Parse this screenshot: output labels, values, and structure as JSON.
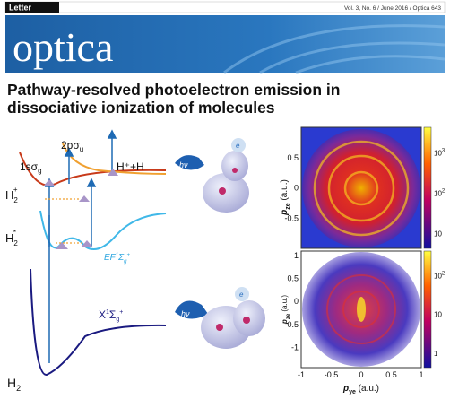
{
  "header": {
    "label": "Letter",
    "info": "Vol. 3, No. 6 / June 2016 / Optica 643"
  },
  "journal": "optica",
  "title": [
    "Pathway-resolved photoelectron emission in",
    "dissociative ionization of molecules"
  ],
  "figure": {
    "curves": {
      "upper": {
        "main": "2pσ",
        "sub": "u"
      },
      "lower": {
        "main": "1sσ",
        "sub": "g"
      },
      "ion": {
        "main": "H",
        "sub": "2",
        "sup": "+"
      },
      "excited": {
        "main": "H",
        "sub": "2",
        "sup": "*"
      },
      "limit": "H⁺+H",
      "ef": {
        "main": "EF",
        "sup1": "1",
        "mid": "Σ",
        "sub": "g",
        "sup2": "+"
      },
      "ground": {
        "main": "X",
        "sup1": "1",
        "mid": "Σ",
        "sub": "g",
        "sup2": "+"
      },
      "neutral": {
        "main": "H",
        "sub": "2"
      }
    },
    "photon": "hν",
    "electron": "e",
    "y_label": {
      "main": "p",
      "sub": "ze",
      "unit": " (a.u.)"
    },
    "x_label": {
      "main": "p",
      "sub": "ye",
      "unit": " (a.u.)"
    },
    "top_yticks": [
      "0.5",
      "0",
      "-0.5"
    ],
    "bottom_yticks": [
      "0.5",
      "0",
      "-0.5",
      "-1"
    ],
    "bottom_ytick_top": "1",
    "xticks": [
      "-1",
      "-0.5",
      "0",
      "0.5",
      "1"
    ],
    "top_cbar": [
      {
        "text": "10",
        "sup": "3"
      },
      {
        "text": "10",
        "sup": "2"
      },
      {
        "text": "10"
      }
    ],
    "bottom_cbar": [
      {
        "text": "10",
        "sup": "2"
      },
      {
        "text": "10"
      },
      {
        "text": "1"
      }
    ]
  }
}
